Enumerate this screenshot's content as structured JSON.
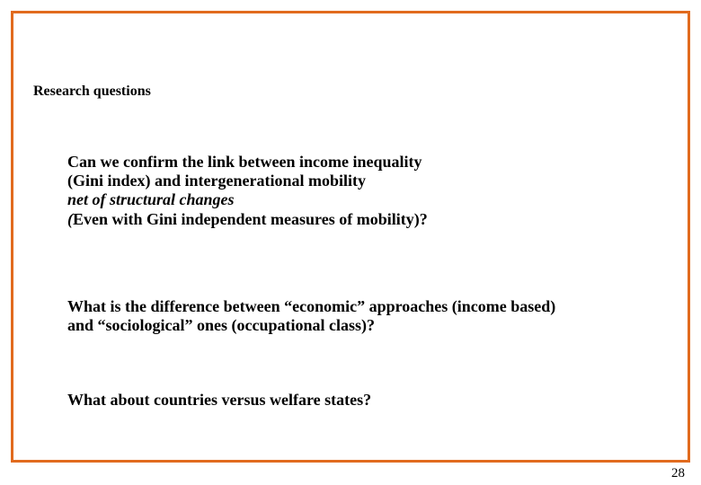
{
  "frame": {
    "border_color": "#e16b1e",
    "border_width": 3,
    "background_color": "#ffffff"
  },
  "heading": {
    "text": "Research questions",
    "fontsize": 16,
    "fontweight": "bold",
    "color": "#000000"
  },
  "questions": {
    "q1": {
      "line1": "Can we confirm the link between income inequality",
      "line2": "(Gini index) and intergenerational mobility",
      "line3_italic": "net of structural changes",
      "line4_prefix_italic": "(",
      "line4_rest": "Even with Gini independent measures of mobility)?"
    },
    "q2": {
      "line1": "What is the difference between “economic” approaches (income based)",
      "line2": "and “sociological” ones (occupational class)?"
    },
    "q3": {
      "line1": "What about countries versus welfare states?"
    },
    "fontsize": 18,
    "fontweight": "bold",
    "color": "#000000"
  },
  "page_number": {
    "value": "28",
    "fontsize": 15,
    "color": "#000000"
  }
}
